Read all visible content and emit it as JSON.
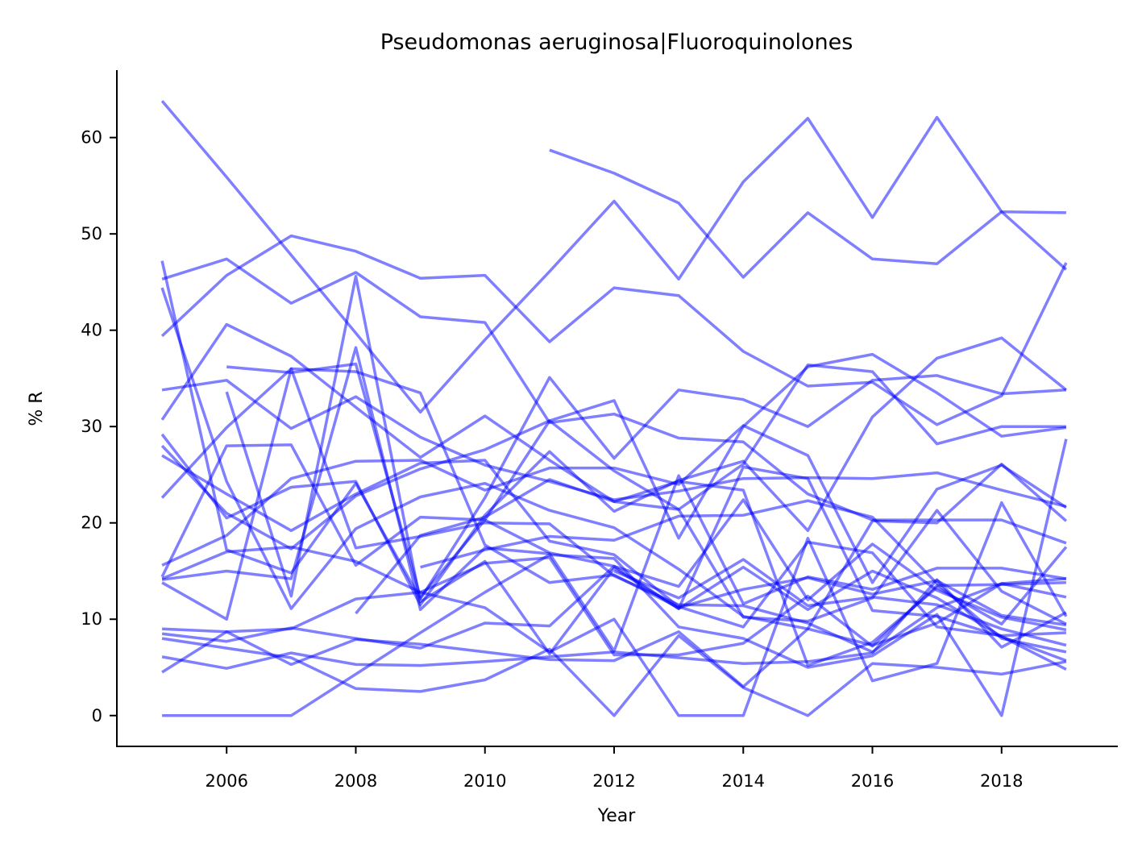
{
  "chart_data": {
    "type": "line",
    "title": "Pseudomonas aeruginosa|Fluoroquinolones",
    "xlabel": "Year",
    "ylabel": "% R",
    "xlim": [
      2004.3,
      2019.8
    ],
    "ylim": [
      -3.2,
      67
    ],
    "xticks": [
      2006,
      2008,
      2010,
      2012,
      2014,
      2016,
      2018
    ],
    "yticks": [
      0,
      10,
      20,
      30,
      40,
      50,
      60
    ],
    "line_color": "#0000ff",
    "line_alpha": 0.5,
    "grid": false,
    "legend": false,
    "x": [
      2005,
      2006,
      2007,
      2008,
      2009,
      2010,
      2011,
      2012,
      2013,
      2014,
      2015,
      2016,
      2017,
      2018,
      2019
    ],
    "series": [
      {
        "values": [
          63.8,
          55.9,
          47.8,
          39.7,
          31.5,
          39.0,
          46.1,
          53.4,
          45.3,
          55.4,
          62.0,
          51.7,
          62.1,
          52.3,
          52.2
        ]
      },
      {
        "values": [
          null,
          null,
          null,
          null,
          null,
          null,
          58.7,
          56.3,
          53.2,
          45.5,
          52.2,
          47.4,
          46.9,
          52.3,
          46.3
        ]
      },
      {
        "values": [
          45.3,
          47.4,
          42.8,
          46.0,
          41.4,
          40.8,
          30.4,
          31.3,
          28.8,
          28.4,
          23.0,
          20.3,
          20.3,
          20.3,
          17.9
        ]
      },
      {
        "values": [
          39.4,
          45.7,
          49.8,
          48.2,
          45.4,
          45.7,
          38.8,
          44.4,
          43.6,
          37.8,
          34.2,
          34.6,
          30.2,
          33.2,
          47.0
        ]
      },
      {
        "values": [
          30.7,
          40.6,
          37.3,
          32.0,
          26.8,
          31.1,
          26.5,
          22.2,
          21.4,
          26.1,
          36.4,
          35.7,
          28.2,
          30.0,
          30.0
        ]
      },
      {
        "values": [
          22.6,
          29.9,
          36.0,
          35.7,
          33.5,
          17.7,
          13.8,
          14.6,
          11.2,
          13.1,
          14.3,
          12.6,
          14.0,
          10.4,
          9.4
        ]
      },
      {
        "values": [
          33.8,
          34.8,
          29.8,
          33.1,
          28.9,
          26.0,
          24.3,
          22.4,
          23.3,
          24.6,
          24.7,
          24.6,
          25.2,
          23.4,
          21.7
        ]
      },
      {
        "values": [
          null,
          36.2,
          35.6,
          36.5,
          12.3,
          20.3,
          30.6,
          32.7,
          18.4,
          30.0,
          36.2,
          37.5,
          33.5,
          29.0,
          29.9
        ]
      },
      {
        "values": [
          29.2,
          20.5,
          23.7,
          24.3,
          11.5,
          20.8,
          27.4,
          21.2,
          24.4,
          26.4,
          19.2,
          31.0,
          37.1,
          39.2,
          33.8
        ]
      },
      {
        "values": [
          28.0,
          21.0,
          17.3,
          22.8,
          25.6,
          27.6,
          30.6,
          25.4,
          21.4,
          10.2,
          9.8,
          12.2,
          21.3,
          12.9,
          9.5
        ]
      },
      {
        "values": [
          47.2,
          17.2,
          14.8,
          24.1,
          12.1,
          22.6,
          35.1,
          26.7,
          33.8,
          32.8,
          30.0,
          34.8,
          35.3,
          33.4,
          33.8
        ]
      },
      {
        "values": [
          44.4,
          24.3,
          11.1,
          19.4,
          22.7,
          24.1,
          21.3,
          19.5,
          15.2,
          10.3,
          9.0,
          20.2,
          20.0,
          26.1,
          20.2
        ]
      },
      {
        "values": [
          27.0,
          23.0,
          19.2,
          23.0,
          26.2,
          26.5,
          18.1,
          16.7,
          11.3,
          9.2,
          18.0,
          16.9,
          9.2,
          8.3,
          8.6
        ]
      },
      {
        "values": [
          14.4,
          28.0,
          28.1,
          15.6,
          20.6,
          20.3,
          16.9,
          15.5,
          13.4,
          22.4,
          12.0,
          17.8,
          13.0,
          10.2,
          8.9
        ]
      },
      {
        "values": [
          15.6,
          18.7,
          24.6,
          26.4,
          26.5,
          23.4,
          25.7,
          25.7,
          24.0,
          30.1,
          27.0,
          13.8,
          23.5,
          26.0,
          21.6
        ]
      },
      {
        "values": [
          14.1,
          15.0,
          14.2,
          38.2,
          11.0,
          17.4,
          16.8,
          6.7,
          24.9,
          11.6,
          14.4,
          13.1,
          15.3,
          15.3,
          14.2
        ]
      },
      {
        "values": [
          14.2,
          17.0,
          17.5,
          16.0,
          12.8,
          15.8,
          16.4,
          6.3,
          6.3,
          7.5,
          12.4,
          7.2,
          13.5,
          13.6,
          13.8
        ]
      },
      {
        "values": [
          13.8,
          10.0,
          36.0,
          17.4,
          18.6,
          20.0,
          19.9,
          14.5,
          11.5,
          11.4,
          9.6,
          6.6,
          11.2,
          13.7,
          14.2
        ]
      },
      {
        "values": [
          null,
          33.6,
          12.4,
          45.6,
          11.8,
          16.0,
          6.4,
          15.3,
          11.1,
          25.8,
          24.6,
          10.9,
          10.3,
          8.2,
          4.8
        ]
      },
      {
        "values": [
          9.0,
          8.7,
          9.0,
          12.1,
          12.8,
          11.2,
          6.6,
          10.0,
          0.0,
          0.0,
          18.4,
          3.6,
          5.4,
          22.1,
          10.3
        ]
      },
      {
        "values": [
          8.5,
          7.7,
          9.1,
          8.0,
          7.0,
          9.6,
          9.3,
          15.5,
          11.1,
          15.4,
          11.0,
          15.0,
          12.2,
          8.2,
          5.7
        ]
      },
      {
        "values": [
          4.5,
          8.7,
          5.3,
          7.9,
          7.4,
          6.6,
          5.8,
          5.7,
          8.7,
          3.0,
          9.0,
          7.3,
          9.6,
          13.7,
          12.3
        ]
      },
      {
        "values": [
          6.1,
          4.9,
          6.5,
          5.3,
          5.2,
          5.6,
          6.1,
          6.6,
          6.0,
          5.4,
          5.6,
          6.5,
          14.1,
          7.1,
          10.7
        ]
      },
      {
        "values": [
          8.0,
          7.0,
          6.0,
          2.8,
          2.5,
          3.7,
          6.9,
          0.0,
          8.3,
          2.9,
          0.0,
          5.4,
          5.0,
          4.3,
          5.6
        ]
      },
      {
        "values": [
          0.0,
          0.0,
          0.0,
          4.3,
          8.6,
          12.8,
          16.7,
          16.3,
          9.2,
          8.0,
          5.0,
          6.2,
          10.5,
          0.0,
          28.7
        ]
      },
      {
        "values": [
          null,
          null,
          null,
          10.6,
          18.7,
          20.6,
          24.5,
          22.2,
          24.3,
          23.4,
          5.2,
          7.6,
          13.3,
          9.5,
          17.5
        ]
      },
      {
        "values": [
          null,
          null,
          null,
          null,
          15.4,
          17.2,
          18.6,
          18.2,
          20.7,
          20.8,
          22.3,
          20.6,
          13.7,
          8.0,
          6.6
        ]
      },
      {
        "values": [
          null,
          null,
          null,
          null,
          null,
          null,
          null,
          15.0,
          12.2,
          16.2,
          11.4,
          12.3,
          11.5,
          9.0,
          7.3
        ]
      }
    ]
  }
}
